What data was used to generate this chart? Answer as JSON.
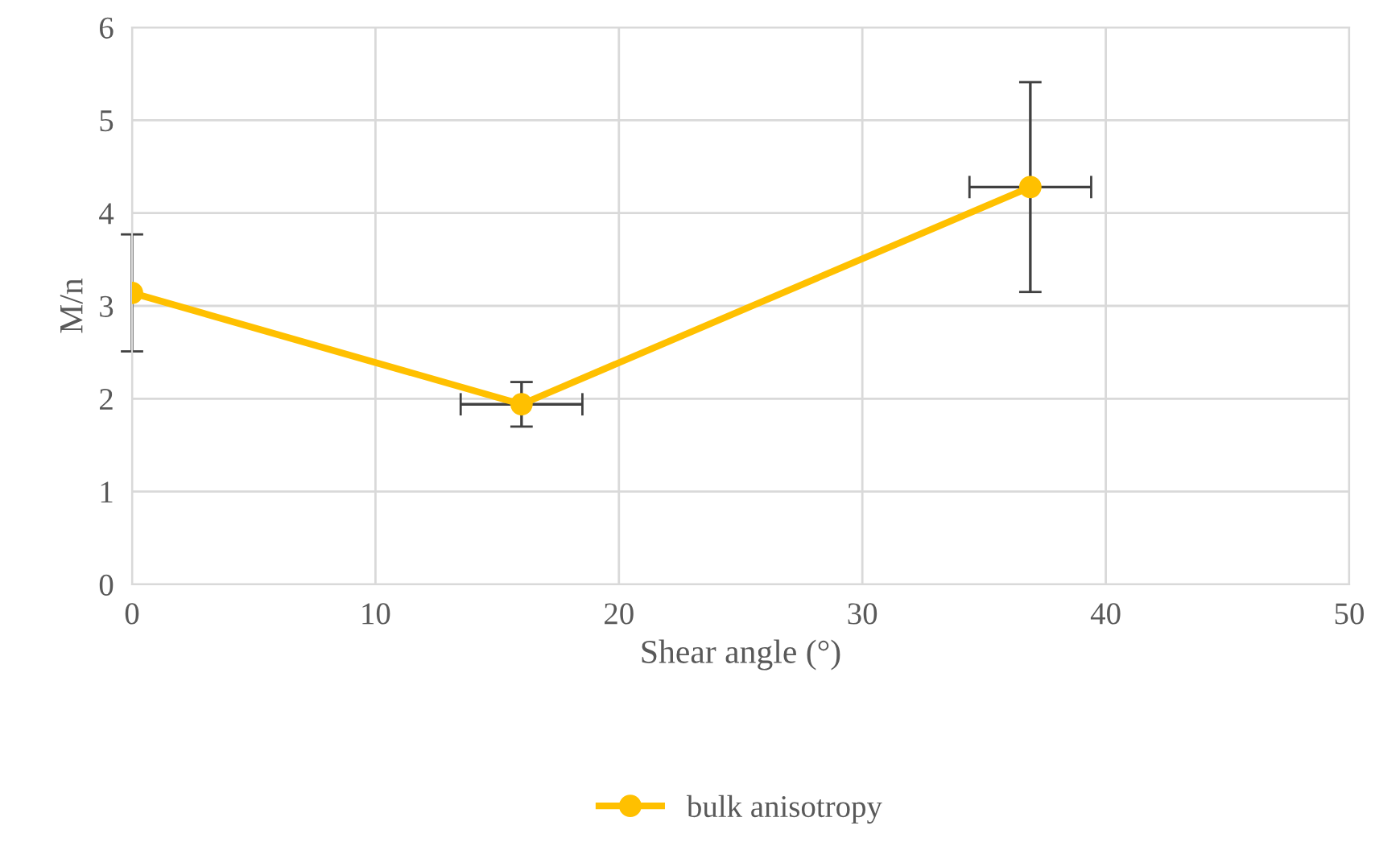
{
  "chart_data": {
    "type": "line",
    "xlabel": "Shear angle (°)",
    "ylabel": "M/n",
    "x": [
      0,
      16.0,
      36.9
    ],
    "series": [
      {
        "name": "bulk anisotropy",
        "color": "#ffc000",
        "values": [
          3.14,
          1.94,
          4.28
        ],
        "errors": [
          0.63,
          0.24,
          1.13
        ],
        "xerrors": [
          null,
          2.5,
          2.5
        ]
      }
    ],
    "xlim": [
      0,
      50
    ],
    "xticks": [
      0,
      10,
      20,
      30,
      40,
      50
    ],
    "ylim": [
      0,
      6
    ],
    "yticks": [
      0,
      1,
      2,
      3,
      4,
      5,
      6
    ],
    "grid": true,
    "legend": "bottom",
    "marker": "circle",
    "line_style": "solid"
  }
}
